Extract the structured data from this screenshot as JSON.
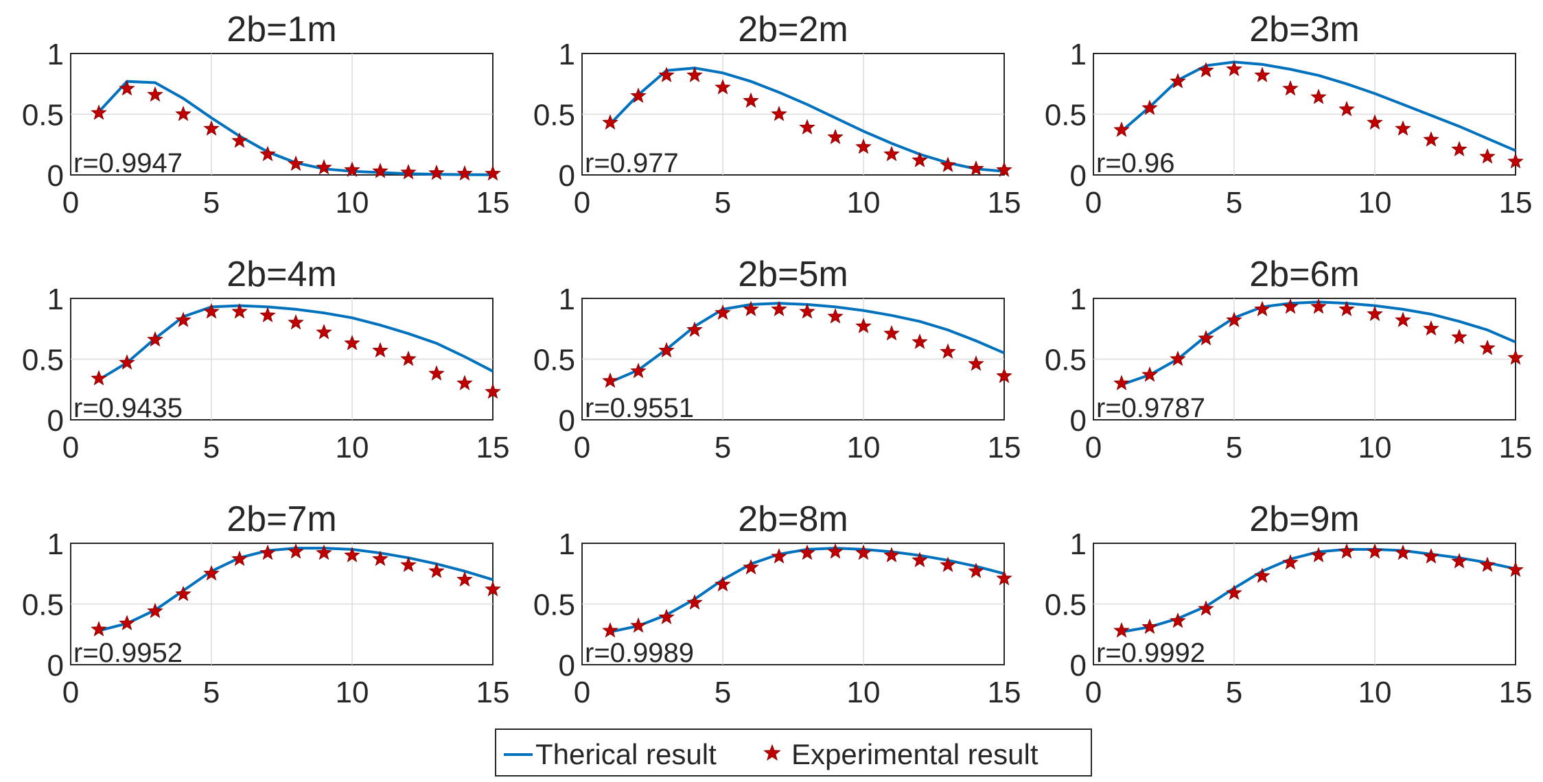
{
  "colors": {
    "theory": "#0072bd",
    "experiment": "#c00000",
    "axis": "#262626",
    "grid": "#dcdcdc"
  },
  "legend": {
    "placement": "bottom-center",
    "entries": [
      {
        "label": "Therical result",
        "marker": "line"
      },
      {
        "label": "Experimental result",
        "marker": "star"
      }
    ]
  },
  "chart_data": [
    {
      "type": "line",
      "title": "2b=1m",
      "annotation": "r=0.9947",
      "xlim": [
        0,
        15
      ],
      "ylim": [
        0,
        1
      ],
      "grid": true,
      "xticks": [
        0,
        5,
        10,
        15
      ],
      "yticks": [
        0,
        0.5,
        1
      ],
      "x": [
        1,
        2,
        3,
        4,
        5,
        6,
        7,
        8,
        9,
        10,
        11,
        12,
        13,
        14,
        15
      ],
      "series": [
        {
          "name": "Therical result",
          "values": [
            0.52,
            0.77,
            0.76,
            0.63,
            0.47,
            0.32,
            0.19,
            0.1,
            0.05,
            0.03,
            0.02,
            0.01,
            0.005,
            0.002,
            0.001
          ]
        },
        {
          "name": "Experimental result",
          "values": [
            0.51,
            0.71,
            0.66,
            0.5,
            0.38,
            0.28,
            0.17,
            0.09,
            0.06,
            0.04,
            0.03,
            0.02,
            0.015,
            0.01,
            0.01
          ]
        }
      ]
    },
    {
      "type": "line",
      "title": "2b=2m",
      "annotation": "r=0.977",
      "xlim": [
        0,
        15
      ],
      "ylim": [
        0,
        1
      ],
      "grid": true,
      "xticks": [
        0,
        5,
        10,
        15
      ],
      "yticks": [
        0,
        0.5,
        1
      ],
      "x": [
        1,
        2,
        3,
        4,
        5,
        6,
        7,
        8,
        9,
        10,
        11,
        12,
        13,
        14,
        15
      ],
      "series": [
        {
          "name": "Therical result",
          "values": [
            0.42,
            0.66,
            0.86,
            0.88,
            0.84,
            0.77,
            0.68,
            0.58,
            0.47,
            0.36,
            0.26,
            0.17,
            0.1,
            0.05,
            0.03
          ]
        },
        {
          "name": "Experimental result",
          "values": [
            0.43,
            0.65,
            0.82,
            0.82,
            0.72,
            0.61,
            0.5,
            0.39,
            0.31,
            0.23,
            0.17,
            0.12,
            0.08,
            0.05,
            0.04
          ]
        }
      ]
    },
    {
      "type": "line",
      "title": "2b=3m",
      "annotation": "r=0.96",
      "xlim": [
        0,
        15
      ],
      "ylim": [
        0,
        1
      ],
      "grid": true,
      "xticks": [
        0,
        5,
        10,
        15
      ],
      "yticks": [
        0,
        0.5,
        1
      ],
      "x": [
        1,
        2,
        3,
        4,
        5,
        6,
        7,
        8,
        9,
        10,
        11,
        12,
        13,
        14,
        15
      ],
      "series": [
        {
          "name": "Therical result",
          "values": [
            0.36,
            0.56,
            0.78,
            0.9,
            0.93,
            0.91,
            0.87,
            0.82,
            0.75,
            0.67,
            0.58,
            0.49,
            0.4,
            0.3,
            0.2
          ]
        },
        {
          "name": "Experimental result",
          "values": [
            0.37,
            0.55,
            0.77,
            0.86,
            0.87,
            0.82,
            0.71,
            0.64,
            0.54,
            0.43,
            0.38,
            0.29,
            0.21,
            0.15,
            0.11
          ]
        }
      ]
    },
    {
      "type": "line",
      "title": "2b=4m",
      "annotation": "r=0.9435",
      "xlim": [
        0,
        15
      ],
      "ylim": [
        0,
        1
      ],
      "grid": true,
      "xticks": [
        0,
        5,
        10,
        15
      ],
      "yticks": [
        0,
        0.5,
        1
      ],
      "x": [
        1,
        2,
        3,
        4,
        5,
        6,
        7,
        8,
        9,
        10,
        11,
        12,
        13,
        14,
        15
      ],
      "series": [
        {
          "name": "Therical result",
          "values": [
            0.33,
            0.47,
            0.67,
            0.85,
            0.93,
            0.94,
            0.93,
            0.91,
            0.88,
            0.84,
            0.78,
            0.71,
            0.63,
            0.52,
            0.4
          ]
        },
        {
          "name": "Experimental result",
          "values": [
            0.34,
            0.47,
            0.66,
            0.82,
            0.89,
            0.89,
            0.86,
            0.8,
            0.72,
            0.63,
            0.57,
            0.5,
            0.38,
            0.3,
            0.23
          ]
        }
      ]
    },
    {
      "type": "line",
      "title": "2b=5m",
      "annotation": "r=0.9551",
      "xlim": [
        0,
        15
      ],
      "ylim": [
        0,
        1
      ],
      "grid": true,
      "xticks": [
        0,
        5,
        10,
        15
      ],
      "yticks": [
        0,
        0.5,
        1
      ],
      "x": [
        1,
        2,
        3,
        4,
        5,
        6,
        7,
        8,
        9,
        10,
        11,
        12,
        13,
        14,
        15
      ],
      "series": [
        {
          "name": "Therical result",
          "values": [
            0.31,
            0.41,
            0.58,
            0.77,
            0.91,
            0.95,
            0.96,
            0.95,
            0.93,
            0.9,
            0.86,
            0.81,
            0.74,
            0.65,
            0.55
          ]
        },
        {
          "name": "Experimental result",
          "values": [
            0.32,
            0.4,
            0.57,
            0.74,
            0.88,
            0.91,
            0.91,
            0.89,
            0.85,
            0.77,
            0.71,
            0.64,
            0.56,
            0.46,
            0.36
          ]
        }
      ]
    },
    {
      "type": "line",
      "title": "2b=6m",
      "annotation": "r=0.9787",
      "xlim": [
        0,
        15
      ],
      "ylim": [
        0,
        1
      ],
      "grid": true,
      "xticks": [
        0,
        5,
        10,
        15
      ],
      "yticks": [
        0,
        0.5,
        1
      ],
      "x": [
        1,
        2,
        3,
        4,
        5,
        6,
        7,
        8,
        9,
        10,
        11,
        12,
        13,
        14,
        15
      ],
      "series": [
        {
          "name": "Therical result",
          "values": [
            0.29,
            0.37,
            0.5,
            0.69,
            0.84,
            0.93,
            0.96,
            0.97,
            0.96,
            0.94,
            0.91,
            0.87,
            0.81,
            0.74,
            0.64
          ]
        },
        {
          "name": "Experimental result",
          "values": [
            0.3,
            0.37,
            0.5,
            0.67,
            0.82,
            0.91,
            0.93,
            0.93,
            0.91,
            0.87,
            0.82,
            0.75,
            0.68,
            0.59,
            0.51
          ]
        }
      ]
    },
    {
      "type": "line",
      "title": "2b=7m",
      "annotation": "r=0.9952",
      "xlim": [
        0,
        15
      ],
      "ylim": [
        0,
        1
      ],
      "grid": true,
      "xticks": [
        0,
        5,
        10,
        15
      ],
      "yticks": [
        0,
        0.5,
        1
      ],
      "x": [
        1,
        2,
        3,
        4,
        5,
        6,
        7,
        8,
        9,
        10,
        11,
        12,
        13,
        14,
        15
      ],
      "series": [
        {
          "name": "Therical result",
          "values": [
            0.28,
            0.34,
            0.45,
            0.61,
            0.77,
            0.88,
            0.94,
            0.96,
            0.96,
            0.95,
            0.92,
            0.88,
            0.83,
            0.77,
            0.7
          ]
        },
        {
          "name": "Experimental result",
          "values": [
            0.29,
            0.34,
            0.44,
            0.58,
            0.75,
            0.87,
            0.92,
            0.93,
            0.92,
            0.9,
            0.87,
            0.82,
            0.77,
            0.7,
            0.62
          ]
        }
      ]
    },
    {
      "type": "line",
      "title": "2b=8m",
      "annotation": "r=0.9989",
      "xlim": [
        0,
        15
      ],
      "ylim": [
        0,
        1
      ],
      "grid": true,
      "xticks": [
        0,
        5,
        10,
        15
      ],
      "yticks": [
        0,
        0.5,
        1
      ],
      "x": [
        1,
        2,
        3,
        4,
        5,
        6,
        7,
        8,
        9,
        10,
        11,
        12,
        13,
        14,
        15
      ],
      "series": [
        {
          "name": "Therical result",
          "values": [
            0.27,
            0.32,
            0.41,
            0.54,
            0.7,
            0.83,
            0.91,
            0.95,
            0.96,
            0.95,
            0.93,
            0.9,
            0.86,
            0.81,
            0.75
          ]
        },
        {
          "name": "Experimental result",
          "values": [
            0.28,
            0.32,
            0.39,
            0.51,
            0.66,
            0.8,
            0.89,
            0.92,
            0.93,
            0.92,
            0.9,
            0.86,
            0.82,
            0.77,
            0.71
          ]
        }
      ]
    },
    {
      "type": "line",
      "title": "2b=9m",
      "annotation": "r=0.9992",
      "xlim": [
        0,
        15
      ],
      "ylim": [
        0,
        1
      ],
      "grid": true,
      "xticks": [
        0,
        5,
        10,
        15
      ],
      "yticks": [
        0,
        0.5,
        1
      ],
      "x": [
        1,
        2,
        3,
        4,
        5,
        6,
        7,
        8,
        9,
        10,
        11,
        12,
        13,
        14,
        15
      ],
      "series": [
        {
          "name": "Therical result",
          "values": [
            0.27,
            0.31,
            0.38,
            0.48,
            0.63,
            0.77,
            0.87,
            0.93,
            0.95,
            0.95,
            0.94,
            0.91,
            0.88,
            0.84,
            0.79
          ]
        },
        {
          "name": "Experimental result",
          "values": [
            0.28,
            0.31,
            0.36,
            0.46,
            0.59,
            0.73,
            0.84,
            0.9,
            0.93,
            0.93,
            0.92,
            0.89,
            0.85,
            0.82,
            0.78
          ]
        }
      ]
    }
  ]
}
